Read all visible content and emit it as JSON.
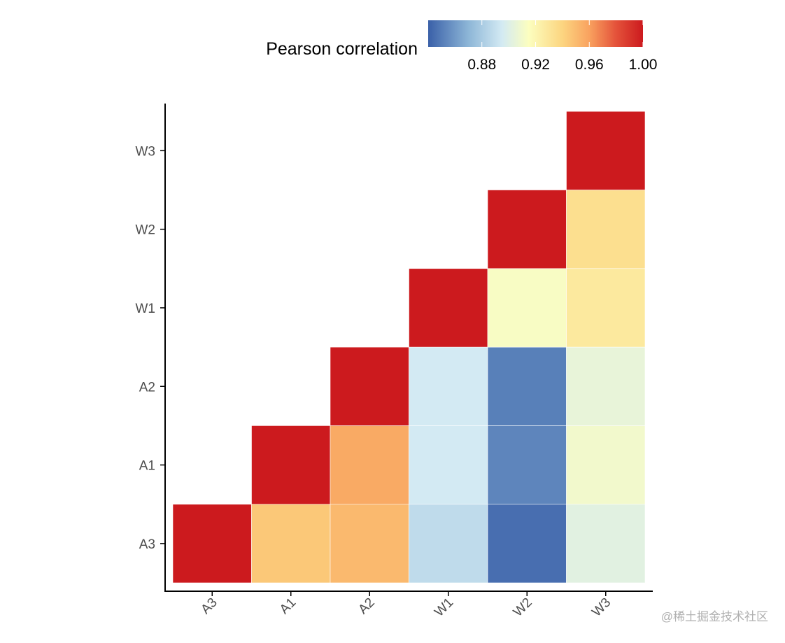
{
  "chart_data": {
    "type": "heatmap",
    "title": "",
    "xlabel": "",
    "ylabel": "",
    "x_categories": [
      "A3",
      "A1",
      "A2",
      "W1",
      "W2",
      "W3"
    ],
    "y_categories": [
      "A3",
      "A1",
      "A2",
      "W1",
      "W2",
      "W3"
    ],
    "layout": "upper-triangle",
    "cells": [
      {
        "x": "A3",
        "y": "A3",
        "value": 1.0
      },
      {
        "x": "A1",
        "y": "A3",
        "value": 0.945
      },
      {
        "x": "A2",
        "y": "A3",
        "value": 0.951
      },
      {
        "x": "W1",
        "y": "A3",
        "value": 0.888
      },
      {
        "x": "W2",
        "y": "A3",
        "value": 0.845
      },
      {
        "x": "W3",
        "y": "A3",
        "value": 0.902
      },
      {
        "x": "A1",
        "y": "A1",
        "value": 1.0
      },
      {
        "x": "A2",
        "y": "A1",
        "value": 0.957
      },
      {
        "x": "W1",
        "y": "A1",
        "value": 0.895
      },
      {
        "x": "W2",
        "y": "A1",
        "value": 0.853
      },
      {
        "x": "W3",
        "y": "A1",
        "value": 0.91
      },
      {
        "x": "A2",
        "y": "A2",
        "value": 1.0
      },
      {
        "x": "W1",
        "y": "A2",
        "value": 0.895
      },
      {
        "x": "W2",
        "y": "A2",
        "value": 0.851
      },
      {
        "x": "W3",
        "y": "A2",
        "value": 0.905
      },
      {
        "x": "W1",
        "y": "W1",
        "value": 1.0
      },
      {
        "x": "W2",
        "y": "W1",
        "value": 0.913
      },
      {
        "x": "W3",
        "y": "W1",
        "value": 0.928
      },
      {
        "x": "W2",
        "y": "W2",
        "value": 1.0
      },
      {
        "x": "W3",
        "y": "W2",
        "value": 0.934
      },
      {
        "x": "W3",
        "y": "W3",
        "value": 1.0
      }
    ],
    "legend": {
      "title": "Pearson correlation",
      "placement": "top",
      "range": [
        0.84,
        1.0
      ],
      "ticks": [
        0.88,
        0.92,
        0.96,
        1.0
      ],
      "tick_labels": [
        "0.88",
        "0.92",
        "0.96",
        "1.00"
      ],
      "color_stops": [
        {
          "value": 0.84,
          "color": "#3A60A8"
        },
        {
          "value": 0.87,
          "color": "#8DB6D7"
        },
        {
          "value": 0.895,
          "color": "#D3EAF3"
        },
        {
          "value": 0.915,
          "color": "#FCFEBF"
        },
        {
          "value": 0.94,
          "color": "#FCD580"
        },
        {
          "value": 0.96,
          "color": "#F9A25F"
        },
        {
          "value": 0.98,
          "color": "#E4523A"
        },
        {
          "value": 1.0,
          "color": "#CC1A1E"
        }
      ]
    },
    "grid": false
  },
  "watermark": "@稀土掘金技术社区"
}
